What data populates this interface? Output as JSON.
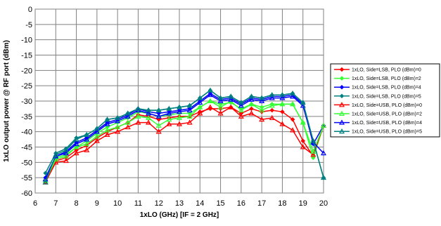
{
  "chart_data": {
    "type": "line",
    "xlabel": "1xLO (GHz) [IF = 2 GHz]",
    "ylabel": "1xLO output power @ RF port (dBm)",
    "xlim": [
      6,
      20
    ],
    "ylim": [
      -60,
      0
    ],
    "xticks": [
      "6",
      "7",
      "8",
      "9",
      "10",
      "11",
      "12",
      "13",
      "14",
      "15",
      "16",
      "17",
      "18",
      "19",
      "20"
    ],
    "yticks": [
      "0",
      "-5",
      "-10",
      "-15",
      "-20",
      "-25",
      "-30",
      "-35",
      "-40",
      "-45",
      "-50",
      "-55",
      "-60"
    ],
    "grid": true,
    "legend_position": "right",
    "x": [
      6.5,
      7,
      7.5,
      8,
      8.5,
      9,
      9.5,
      10,
      10.5,
      11,
      11.5,
      12,
      12.5,
      13,
      13.5,
      14,
      14.5,
      15,
      15.5,
      16,
      16.5,
      17,
      17.5,
      18,
      18.5,
      19,
      19.5,
      20
    ],
    "series": [
      {
        "name": "1xLO, Side=LSB, PLO (dBm)=0",
        "color": "#ff0000",
        "marker": "diamond",
        "values": [
          -56.5,
          -49.5,
          -48.5,
          -46,
          -44.5,
          -42,
          -40,
          -38.5,
          -37,
          -34.5,
          -35,
          -36,
          -35.5,
          -35,
          -35,
          -33.5,
          -32.5,
          -32.5,
          -32,
          -34,
          -32.5,
          -33.5,
          -33,
          -33.5,
          -36,
          -43,
          -48,
          -38
        ]
      },
      {
        "name": "1xLO, Side=LSB, PLO (dBm)=2",
        "color": "#33ff33",
        "marker": "diamond",
        "values": [
          -55,
          -48.5,
          -47.5,
          -45,
          -43,
          -40.5,
          -38.5,
          -37,
          -35.5,
          -33.5,
          -34,
          -35,
          -34.5,
          -34,
          -34,
          -32,
          -30,
          -31,
          -30.5,
          -32.5,
          -31,
          -32,
          -31,
          -31,
          -31,
          -37,
          -48.5,
          -38
        ]
      },
      {
        "name": "1xLO, Side=LSB, PLO (dBm)=4",
        "color": "#0000ff",
        "marker": "diamond",
        "values": [
          -55,
          -48,
          -46.5,
          -43.5,
          -42,
          -39.5,
          -37,
          -36,
          -34.5,
          -32.5,
          -33.5,
          -34,
          -33.5,
          -33,
          -32.5,
          -30,
          -27.5,
          -29.5,
          -29,
          -31,
          -29,
          -29.5,
          -28.5,
          -28.5,
          -28,
          -31,
          -44,
          -38
        ]
      },
      {
        "name": "1xLO, Side=LSB, PLO (dBm)=5",
        "color": "#008080",
        "marker": "diamond",
        "values": [
          -53.5,
          -47,
          -45.5,
          -42,
          -41,
          -39,
          -36,
          -35.5,
          -34,
          -32.5,
          -33,
          -33,
          -32.5,
          -32,
          -31.5,
          -29,
          -26.5,
          -29,
          -28.5,
          -30.5,
          -28.5,
          -29,
          -28,
          -28,
          -27.5,
          -30.5,
          -43,
          -55
        ]
      },
      {
        "name": "1xLO, Side=USB, PLO (dBm)=0",
        "color": "#ff0000",
        "marker": "triangle",
        "values": [
          -56.5,
          -50,
          -49.5,
          -47,
          -46,
          -43,
          -41,
          -40,
          -38.5,
          -37,
          -37,
          -40,
          -37.5,
          -37.5,
          -37,
          -34,
          -32,
          -34,
          -32,
          -35,
          -34,
          -36,
          -35.5,
          -37.5,
          -39.5,
          -45,
          -47.5,
          -38
        ]
      },
      {
        "name": "1xLO, Side=USB, PLO (dBm)=2",
        "color": "#33ff33",
        "marker": "triangle",
        "values": [
          -56,
          -49,
          -48,
          -45,
          -44,
          -41.5,
          -39.5,
          -38.5,
          -37,
          -35,
          -35.5,
          -38,
          -36,
          -35.5,
          -35,
          -32,
          -30,
          -32,
          -30,
          -33,
          -31,
          -33,
          -31.5,
          -31,
          -31,
          -37,
          -46.5,
          -38
        ]
      },
      {
        "name": "1xLO, Side=USB, PLO (dBm)=4",
        "color": "#0000ff",
        "marker": "triangle",
        "values": [
          -55.5,
          -48,
          -47,
          -44,
          -42.5,
          -40,
          -37.5,
          -36.5,
          -35,
          -33,
          -34,
          -35,
          -34,
          -33.5,
          -33,
          -30.5,
          -28,
          -30,
          -29.5,
          -31.5,
          -29.5,
          -30,
          -29,
          -29,
          -28.5,
          -31.5,
          -43.5,
          -47
        ]
      },
      {
        "name": "1xLO, Side=USB, PLO (dBm)=5",
        "color": "#008080",
        "marker": "triangle",
        "values": [
          -56.5,
          -47.5,
          -46,
          -42.5,
          -41,
          -39,
          -36,
          -35.5,
          -34,
          -32.5,
          -33,
          -33,
          -32.5,
          -32,
          -31.5,
          -29,
          -26.5,
          -29,
          -28.5,
          -30.5,
          -28.5,
          -29,
          -28,
          -28,
          -27.5,
          -30.5,
          -43,
          -55
        ]
      }
    ]
  }
}
